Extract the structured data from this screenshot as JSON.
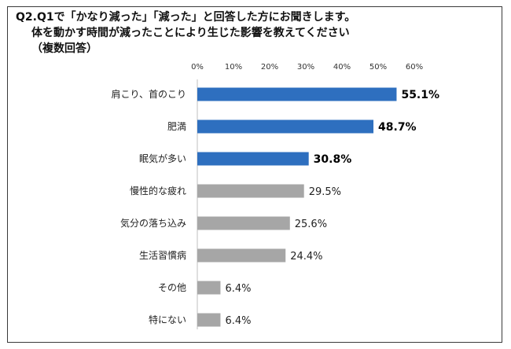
{
  "title": {
    "line1": "Q2.Q1で「かなり減った」「減った」と回答した方にお聞きします。",
    "line2": "体を動かす時間が減ったことにより生じた影響を教えてください",
    "line3": "（複数回答）"
  },
  "colors": {
    "highlight": "#2e6fbf",
    "normal": "#a6a6a6",
    "grid": "#d9d9d9"
  },
  "chart_data": {
    "type": "bar",
    "orientation": "horizontal",
    "title": "Q2.Q1で「かなり減った」「減った」と回答した方にお聞きします。体を動かす時間が減ったことにより生じた影響を教えてください（複数回答）",
    "categories": [
      "肩こり、首のこり",
      "肥満",
      "眠気が多い",
      "慢性的な疲れ",
      "気分の落ち込み",
      "生活習慣病",
      "その他",
      "特にない"
    ],
    "values": [
      55.1,
      48.7,
      30.8,
      29.5,
      25.6,
      24.4,
      6.4,
      6.4
    ],
    "value_labels": [
      "55.1%",
      "48.7%",
      "30.8%",
      "29.5%",
      "25.6%",
      "24.4%",
      "6.4%",
      "6.4%"
    ],
    "highlighted": [
      true,
      true,
      true,
      false,
      false,
      false,
      false,
      false
    ],
    "xlim": [
      0,
      60
    ],
    "xticks": [
      "0%",
      "10%",
      "20%",
      "30%",
      "40%",
      "50%",
      "60%"
    ],
    "axis_position": "top",
    "grid": false,
    "legend": "none"
  }
}
